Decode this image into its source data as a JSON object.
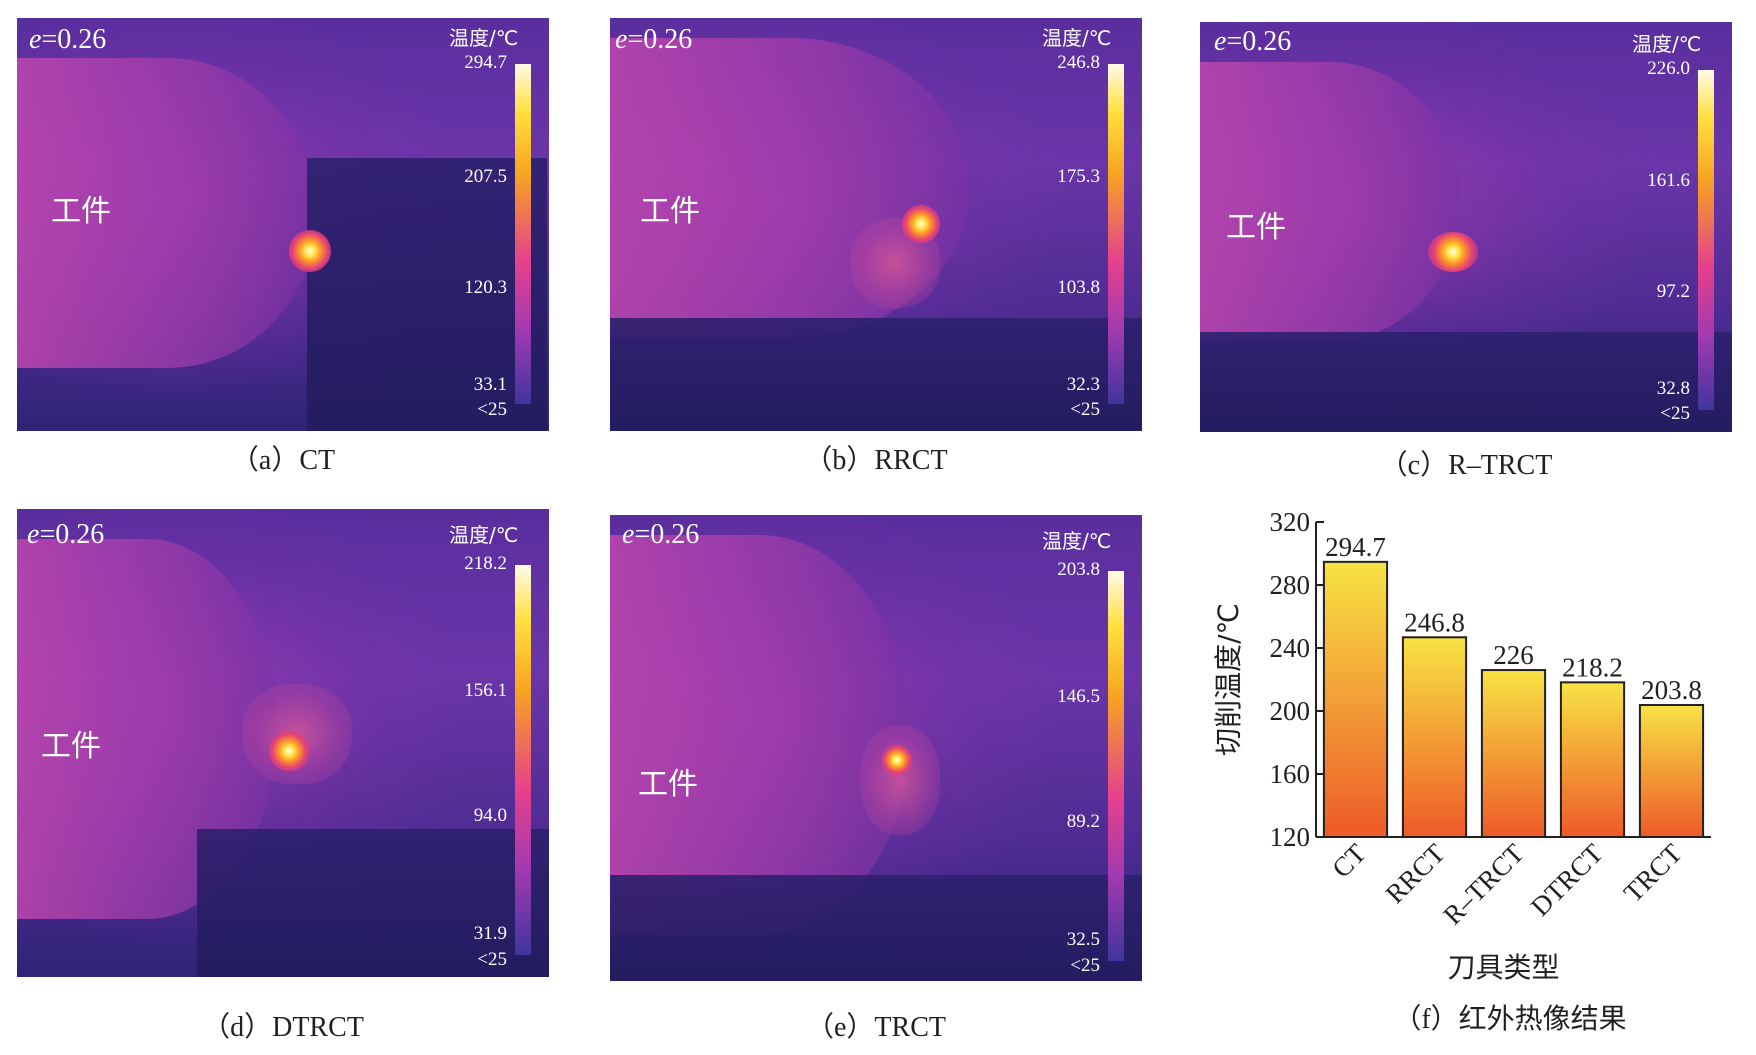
{
  "panels": [
    {
      "e_label_prefix": "e",
      "e_label_value": "=0.26",
      "workpiece_label": "工件",
      "scale_title": "温度/℃",
      "ticks": [
        "294.7",
        "207.5",
        "120.3",
        "33.1",
        "<25"
      ],
      "caption": "（a）CT"
    },
    {
      "e_label_prefix": "e",
      "e_label_value": "=0.26",
      "workpiece_label": "工件",
      "scale_title": "温度/℃",
      "ticks": [
        "246.8",
        "175.3",
        "103.8",
        "32.3",
        "<25"
      ],
      "caption": "（b）RRCT"
    },
    {
      "e_label_prefix": "e",
      "e_label_value": "=0.26",
      "workpiece_label": "工件",
      "scale_title": "温度/℃",
      "ticks": [
        "226.0",
        "161.6",
        "97.2",
        "32.8",
        "<25"
      ],
      "caption": "（c）R–TRCT"
    },
    {
      "e_label_prefix": "e",
      "e_label_value": "=0.26",
      "workpiece_label": "工件",
      "scale_title": "温度/℃",
      "ticks": [
        "218.2",
        "156.1",
        "94.0",
        "31.9",
        "<25"
      ],
      "caption": "（d）DTRCT"
    },
    {
      "e_label_prefix": "e",
      "e_label_value": "=0.26",
      "workpiece_label": "工件",
      "scale_title": "温度/℃",
      "ticks": [
        "203.8",
        "146.5",
        "89.2",
        "32.5",
        "<25"
      ],
      "caption": "（e）TRCT"
    }
  ],
  "chart_data": {
    "type": "bar",
    "categories": [
      "CT",
      "RRCT",
      "R–TRCT",
      "DTRCT",
      "TRCT"
    ],
    "values": [
      294.7,
      246.8,
      226,
      218.2,
      203.8
    ],
    "value_labels": [
      "294.7",
      "246.8",
      "226",
      "218.2",
      "203.8"
    ],
    "xlabel": "刀具类型",
    "ylabel": "切削温度/℃",
    "ylim": [
      120,
      320
    ],
    "yticks": [
      120,
      160,
      200,
      240,
      280,
      320
    ],
    "bar_gradient": [
      "#f7e344",
      "#ee5a28"
    ],
    "caption": "（f）红外热像结果"
  }
}
